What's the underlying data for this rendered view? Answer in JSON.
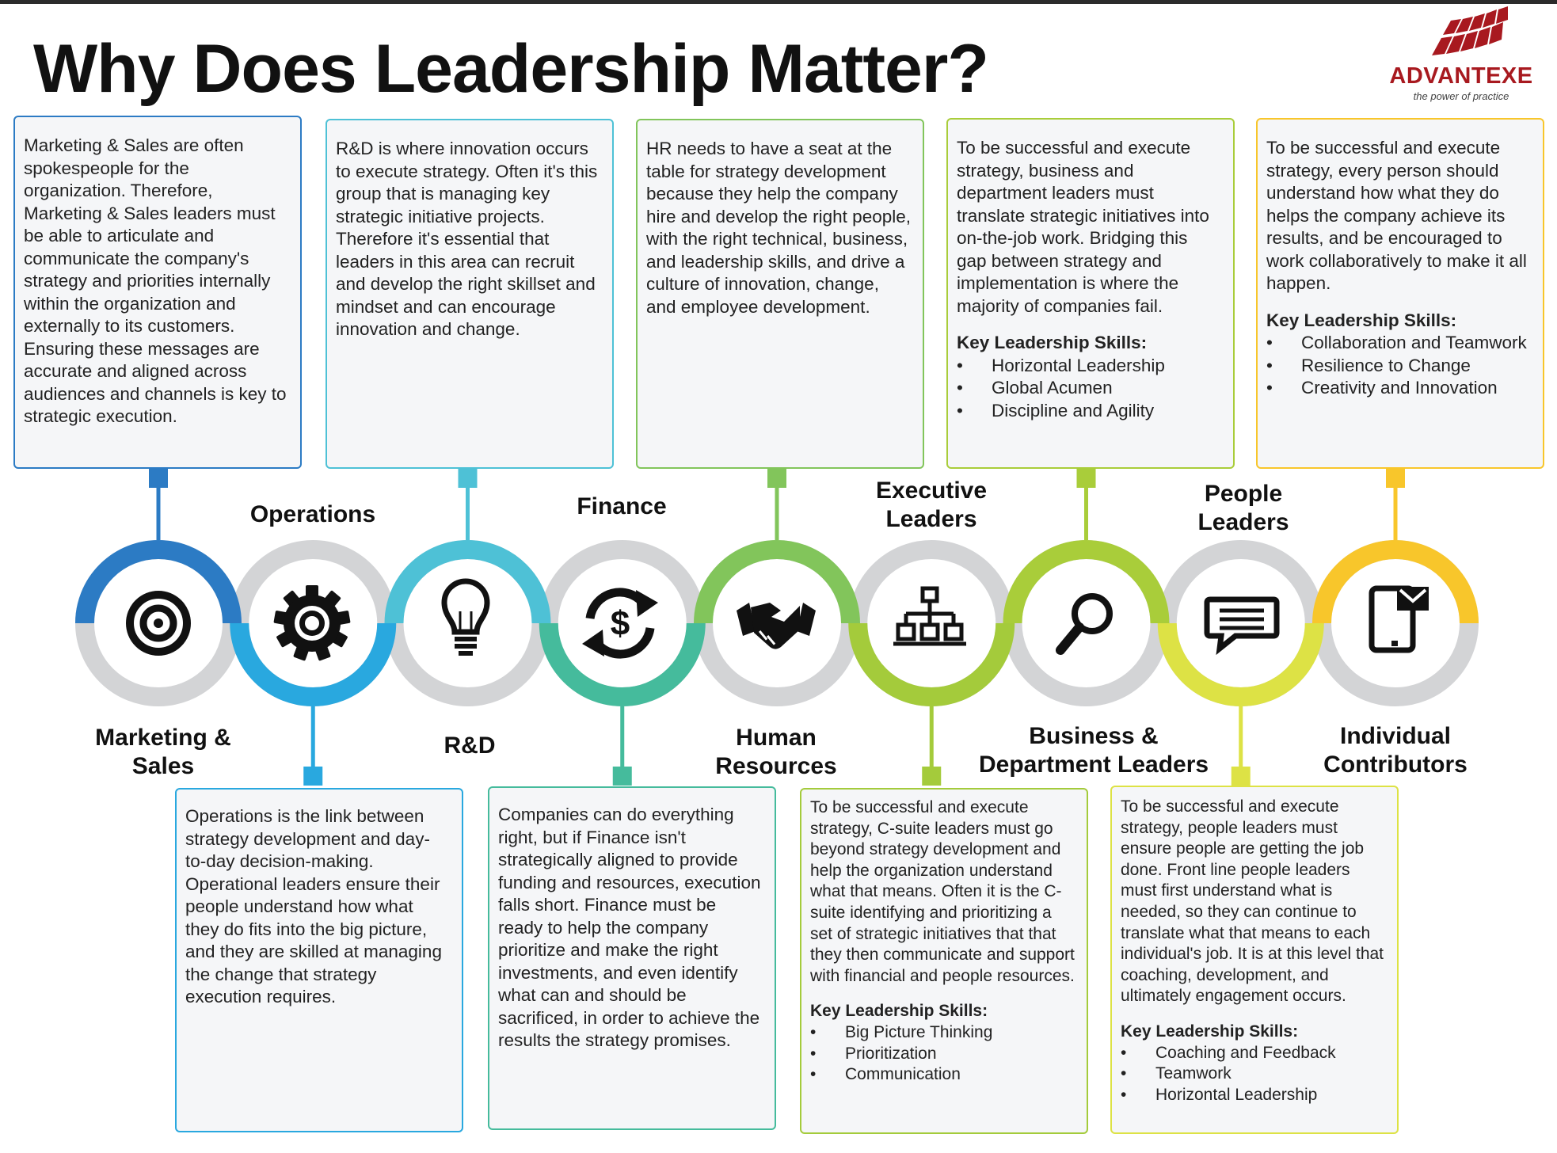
{
  "header": {
    "title": "Why Does Leadership Matter?"
  },
  "logo": {
    "name": "ADVANTEXE",
    "tagline": "the power of practice",
    "color": "#a8191f"
  },
  "colors": {
    "ring_gray": "#d3d4d6",
    "icon": "#111111",
    "box_fill": "#f5f6f8"
  },
  "segments": [
    {
      "label": [
        "Marketing &",
        "Sales"
      ],
      "color": "#2c7bc4",
      "icon": "target-icon",
      "body": "Marketing & Sales are often spokespeople for the organization. Therefore, Marketing & Sales leaders must be able to articulate and communicate the company's strategy and priorities internally within the organization and externally to its customers. Ensuring these messages are accurate and aligned across audiences and channels is key to strategic execution.",
      "skills_title": "",
      "skills": []
    },
    {
      "label": [
        "Operations"
      ],
      "color": "#29a8df",
      "icon": "gear-icon",
      "body": "Operations is the link between strategy development and day-to-day decision-making. Operational leaders ensure their people understand how what they do fits into the big picture, and they are skilled at managing the change that strategy execution requires.",
      "skills_title": "",
      "skills": []
    },
    {
      "label": [
        "R&D"
      ],
      "color": "#4ec1d6",
      "icon": "lightbulb-icon",
      "body": "R&D is where innovation occurs to execute strategy. Often it's this group that is managing key strategic initiative projects. Therefore it's essential that leaders in this area can recruit and develop the right skillset and mindset and can encourage innovation and change.",
      "skills_title": "",
      "skills": []
    },
    {
      "label": [
        "Finance"
      ],
      "color": "#45bb9c",
      "icon": "dollar-cycle-icon",
      "body": "Companies can do everything right, but if Finance isn't strategically aligned to provide funding and resources, execution falls short. Finance must be ready to help the company prioritize and make the right investments, and even identify what can and should be sacrificed, in order to achieve the results the strategy promises.",
      "skills_title": "",
      "skills": []
    },
    {
      "label": [
        "Human",
        "Resources"
      ],
      "color": "#82c55b",
      "icon": "handshake-icon",
      "body": "HR needs to have a seat at the table for strategy development because they help the company hire and develop the right people, with the right technical, business, and leadership skills, and drive a culture of innovation, change, and employee development.",
      "skills_title": "",
      "skills": []
    },
    {
      "label": [
        "Executive",
        "Leaders"
      ],
      "color": "#a4cb3b",
      "icon": "org-chart-icon",
      "body": "To be successful and execute strategy, C-suite leaders must go beyond strategy development and help the organization understand what that means. Often it is the C-suite identifying and prioritizing a set of strategic initiatives that that they then communicate and support with financial and people resources.",
      "skills_title": "Key Leadership Skills:",
      "skills": [
        "Big Picture Thinking",
        "Prioritization",
        "Communication"
      ]
    },
    {
      "label": [
        "Business &",
        "Department Leaders"
      ],
      "color": "#a9cd3a",
      "icon": "magnifier-icon",
      "body": "To be successful and execute strategy, business and department leaders must translate strategic initiatives into on-the-job work. Bridging this gap between strategy and implementation is where the majority of companies fail.",
      "skills_title": "Key Leadership Skills:",
      "skills": [
        "Horizontal Leadership",
        "Global Acumen",
        "Discipline and Agility"
      ]
    },
    {
      "label": [
        "People",
        "Leaders"
      ],
      "color": "#dde245",
      "icon": "chat-icon",
      "body": "To be successful and execute strategy, people leaders must ensure people are getting the job done. Front line people leaders must first understand what is needed, so they can continue to translate what that means to each individual's job. It is at this level that coaching, development, and ultimately engagement occurs.",
      "skills_title": "Key Leadership Skills:",
      "skills": [
        "Coaching and Feedback",
        "Teamwork",
        "Horizontal Leadership"
      ]
    },
    {
      "label": [
        "Individual",
        "Contributors"
      ],
      "color": "#f8c62b",
      "icon": "tablet-mail-icon",
      "body": "To be successful and execute strategy, every person should understand how what they do helps the company achieve its results, and be encouraged to work collaboratively to make it all happen.",
      "skills_title": "Key Leadership Skills:",
      "skills": [
        "Collaboration and Teamwork",
        "Resilience to Change",
        "Creativity and Innovation"
      ]
    }
  ]
}
